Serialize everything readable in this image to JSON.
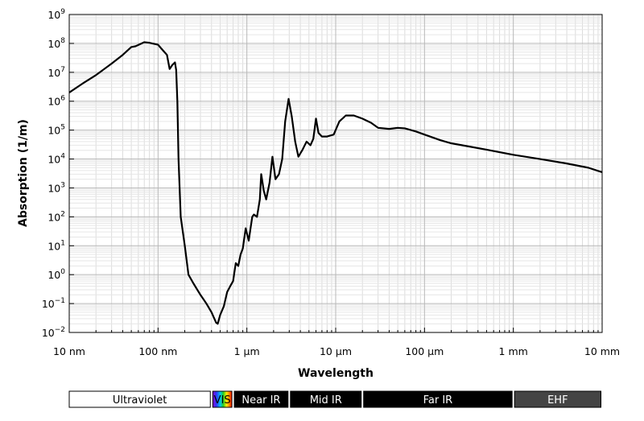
{
  "chart_data": {
    "type": "line",
    "title": "",
    "xlabel": "Wavelength",
    "ylabel": "Absorption (1/m)",
    "x_scale": "log",
    "y_scale": "log",
    "xlim_m": [
      1e-08,
      0.01
    ],
    "ylim": [
      0.01,
      1000000000
    ],
    "grid": true,
    "x_ticks": [
      {
        "value_m": 1e-08,
        "label": "10 nm"
      },
      {
        "value_m": 1e-07,
        "label": "100 nm"
      },
      {
        "value_m": 1e-06,
        "label": "1 µm"
      },
      {
        "value_m": 1e-05,
        "label": "10 µm"
      },
      {
        "value_m": 0.0001,
        "label": "100 µm"
      },
      {
        "value_m": 0.001,
        "label": "1 mm"
      },
      {
        "value_m": 0.01,
        "label": "10 mm"
      }
    ],
    "y_ticks": [
      {
        "value": 0.01,
        "base": "10",
        "exp": "−2"
      },
      {
        "value": 0.1,
        "base": "10",
        "exp": "−1"
      },
      {
        "value": 1.0,
        "base": "10",
        "exp": "0"
      },
      {
        "value": 10.0,
        "base": "10",
        "exp": "1"
      },
      {
        "value": 100.0,
        "base": "10",
        "exp": "2"
      },
      {
        "value": 1000.0,
        "base": "10",
        "exp": "3"
      },
      {
        "value": 10000.0,
        "base": "10",
        "exp": "4"
      },
      {
        "value": 100000.0,
        "base": "10",
        "exp": "5"
      },
      {
        "value": 1000000.0,
        "base": "10",
        "exp": "6"
      },
      {
        "value": 10000000.0,
        "base": "10",
        "exp": "7"
      },
      {
        "value": 100000000.0,
        "base": "10",
        "exp": "8"
      },
      {
        "value": 1000000000.0,
        "base": "10",
        "exp": "9"
      }
    ],
    "series": [
      {
        "color": "#000000",
        "points": [
          [
            1e-08,
            2000000.0
          ],
          [
            1.4e-08,
            4000000.0
          ],
          [
            2e-08,
            8000000.0
          ],
          [
            3e-08,
            20000000.0
          ],
          [
            4e-08,
            40000000.0
          ],
          [
            5e-08,
            75000000.0
          ],
          [
            5.6e-08,
            80000000.0
          ],
          [
            6.3e-08,
            95000000.0
          ],
          [
            7e-08,
            110000000.0
          ],
          [
            8e-08,
            105000000.0
          ],
          [
            1e-07,
            90000000.0
          ],
          [
            1.12e-07,
            60000000.0
          ],
          [
            1.26e-07,
            40000000.0
          ],
          [
            1.35e-07,
            13000000.0
          ],
          [
            1.45e-07,
            18000000.0
          ],
          [
            1.55e-07,
            22000000.0
          ],
          [
            1.6e-07,
            12000000.0
          ],
          [
            1.65e-07,
            1000000.0
          ],
          [
            1.7e-07,
            10000.0
          ],
          [
            1.8e-07,
            100
          ],
          [
            2e-07,
            10
          ],
          [
            2.2e-07,
            1
          ],
          [
            2.5e-07,
            0.5
          ],
          [
            3e-07,
            0.2
          ],
          [
            3.5e-07,
            0.1
          ],
          [
            4e-07,
            0.05
          ],
          [
            4.5e-07,
            0.022
          ],
          [
            4.7e-07,
            0.02
          ],
          [
            5e-07,
            0.04
          ],
          [
            5.5e-07,
            0.08
          ],
          [
            6e-07,
            0.25
          ],
          [
            6.5e-07,
            0.4
          ],
          [
            7e-07,
            0.6
          ],
          [
            7.5e-07,
            2.5
          ],
          [
            8e-07,
            2
          ],
          [
            8.5e-07,
            5
          ],
          [
            9e-07,
            8
          ],
          [
            9.7e-07,
            40
          ],
          [
            1.05e-06,
            15
          ],
          [
            1.1e-06,
            40
          ],
          [
            1.15e-06,
            100
          ],
          [
            1.2e-06,
            120
          ],
          [
            1.3e-06,
            100
          ],
          [
            1.4e-06,
            400
          ],
          [
            1.45e-06,
            3000
          ],
          [
            1.55e-06,
            800
          ],
          [
            1.65e-06,
            400
          ],
          [
            1.8e-06,
            1500
          ],
          [
            1.94e-06,
            12000
          ],
          [
            2.1e-06,
            2000
          ],
          [
            2.3e-06,
            3000
          ],
          [
            2.5e-06,
            10000
          ],
          [
            2.7e-06,
            200000
          ],
          [
            2.95e-06,
            1200000.0
          ],
          [
            3.2e-06,
            300000
          ],
          [
            3.5e-06,
            40000
          ],
          [
            3.8e-06,
            12000
          ],
          [
            4.2e-06,
            20000
          ],
          [
            4.7e-06,
            40000
          ],
          [
            5.2e-06,
            30000
          ],
          [
            5.6e-06,
            50000
          ],
          [
            6e-06,
            250000
          ],
          [
            6.4e-06,
            80000
          ],
          [
            7e-06,
            60000
          ],
          [
            8e-06,
            60000
          ],
          [
            9.5e-06,
            70000
          ],
          [
            1.1e-05,
            200000
          ],
          [
            1.3e-05,
            320000
          ],
          [
            1.6e-05,
            320000
          ],
          [
            2e-05,
            250000
          ],
          [
            2.5e-05,
            180000
          ],
          [
            3e-05,
            120000
          ],
          [
            4e-05,
            110000
          ],
          [
            5e-05,
            120000
          ],
          [
            6e-05,
            115000
          ],
          [
            8e-05,
            90000
          ],
          [
            0.0001,
            70000
          ],
          [
            0.00015,
            45000
          ],
          [
            0.0002,
            35000
          ],
          [
            0.0003,
            28000
          ],
          [
            0.0005,
            21000
          ],
          [
            0.001,
            14000
          ],
          [
            0.002,
            10000
          ],
          [
            0.004,
            7000
          ],
          [
            0.007,
            5000
          ],
          [
            0.01,
            3500
          ]
        ]
      }
    ],
    "bands": [
      {
        "label": "Ultraviolet",
        "start_m": 1e-08,
        "end_m": 4e-07,
        "fill": "#ffffff",
        "text_color": "#000000"
      },
      {
        "label": "VIS",
        "start_m": 4e-07,
        "end_m": 7e-07,
        "fill": "spectrum",
        "text_color": "#000000"
      },
      {
        "label": "Near IR",
        "start_m": 7e-07,
        "end_m": 3e-06,
        "fill": "#000000",
        "text_color": "#ffffff"
      },
      {
        "label": "Mid IR",
        "start_m": 3e-06,
        "end_m": 2e-05,
        "fill": "#000000",
        "text_color": "#ffffff"
      },
      {
        "label": "Far IR",
        "start_m": 2e-05,
        "end_m": 0.001,
        "fill": "#000000",
        "text_color": "#ffffff"
      },
      {
        "label": "EHF",
        "start_m": 0.001,
        "end_m": 0.01,
        "fill": "#444444",
        "text_color": "#ffffff"
      }
    ]
  }
}
